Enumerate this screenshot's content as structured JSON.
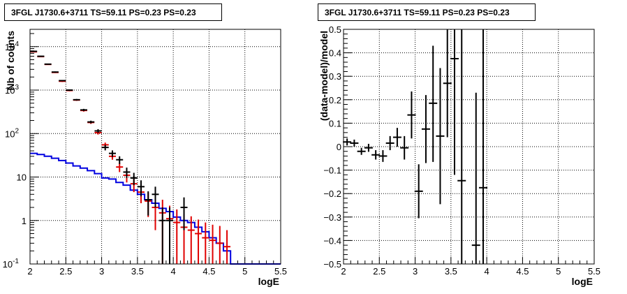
{
  "chart_data": [
    {
      "type": "histogram",
      "title": "3FGL J1730.6+3711 TS=59.11 PS=0.23 PS=0.23",
      "xlabel": "logE",
      "ylabel": "Nb of counts",
      "xlim": [
        2,
        5.5
      ],
      "ylim": [
        0.1,
        25000
      ],
      "log_y": true,
      "grid": true,
      "xticks": [
        "2",
        "2.5",
        "3",
        "3.5",
        "4",
        "4.5",
        "5",
        "5.5"
      ],
      "yticks": [
        {
          "v": 0.1,
          "label": "10",
          "exp": "-1"
        },
        {
          "v": 1,
          "label": "1",
          "exp": ""
        },
        {
          "v": 10,
          "label": "10",
          "exp": ""
        },
        {
          "v": 100,
          "label": "10",
          "exp": "2"
        },
        {
          "v": 1000,
          "label": "10",
          "exp": "3"
        },
        {
          "v": 10000,
          "label": "10",
          "exp": "4"
        }
      ],
      "bin_edges": [
        2.0,
        2.1,
        2.2,
        2.3,
        2.4,
        2.5,
        2.6,
        2.7,
        2.8,
        2.9,
        3.0,
        3.1,
        3.2,
        3.3,
        3.4,
        3.5,
        3.6,
        3.7,
        3.8,
        3.9,
        4.0,
        4.1,
        4.2,
        4.3,
        4.4,
        4.5,
        4.6,
        4.7,
        4.8,
        4.9,
        5.0,
        5.1,
        5.2,
        5.3,
        5.4,
        5.5
      ],
      "series": [
        {
          "kind": "data",
          "color": "#000000",
          "points": [
            {
              "x": 2.05,
              "y": 7800,
              "lo": 7600,
              "hi": 8000
            },
            {
              "x": 2.15,
              "y": 6000,
              "lo": 5850,
              "hi": 6150
            },
            {
              "x": 2.25,
              "y": 3950,
              "lo": 3850,
              "hi": 4050
            },
            {
              "x": 2.35,
              "y": 2600,
              "lo": 2520,
              "hi": 2680
            },
            {
              "x": 2.45,
              "y": 1650,
              "lo": 1590,
              "hi": 1710
            },
            {
              "x": 2.55,
              "y": 1000,
              "lo": 960,
              "hi": 1040
            },
            {
              "x": 2.65,
              "y": 600,
              "lo": 575,
              "hi": 625
            },
            {
              "x": 2.75,
              "y": 350,
              "lo": 330,
              "hi": 370
            },
            {
              "x": 2.85,
              "y": 185,
              "lo": 172,
              "hi": 198
            },
            {
              "x": 2.95,
              "y": 115,
              "lo": 104,
              "hi": 126
            },
            {
              "x": 3.05,
              "y": 48,
              "lo": 41,
              "hi": 55
            },
            {
              "x": 3.15,
              "y": 35,
              "lo": 29,
              "hi": 41
            },
            {
              "x": 3.25,
              "y": 25,
              "lo": 20,
              "hi": 30
            },
            {
              "x": 3.35,
              "y": 13,
              "lo": 9.5,
              "hi": 16.5
            },
            {
              "x": 3.45,
              "y": 9.5,
              "lo": 6.5,
              "hi": 12.5
            },
            {
              "x": 3.55,
              "y": 6,
              "lo": 3.6,
              "hi": 8.4
            },
            {
              "x": 3.65,
              "y": 3,
              "lo": 1.3,
              "hi": 4.7
            },
            {
              "x": 3.75,
              "y": 4,
              "lo": 2,
              "hi": 6
            },
            {
              "x": 3.85,
              "y": 1,
              "lo": 0.1,
              "hi": 2
            },
            {
              "x": 3.95,
              "y": 1,
              "lo": 0.1,
              "hi": 2
            },
            {
              "x": 4.15,
              "y": 2,
              "lo": 0.6,
              "hi": 3.4
            }
          ]
        },
        {
          "kind": "data",
          "color": "#e00000",
          "points": [
            {
              "x": 2.05,
              "y": 7600,
              "lo": 7400,
              "hi": 7800
            },
            {
              "x": 2.15,
              "y": 5900,
              "lo": 5750,
              "hi": 6050
            },
            {
              "x": 2.25,
              "y": 3900,
              "lo": 3800,
              "hi": 4000
            },
            {
              "x": 2.35,
              "y": 2550,
              "lo": 2470,
              "hi": 2630
            },
            {
              "x": 2.45,
              "y": 1600,
              "lo": 1540,
              "hi": 1660
            },
            {
              "x": 2.55,
              "y": 980,
              "lo": 940,
              "hi": 1020
            },
            {
              "x": 2.65,
              "y": 590,
              "lo": 565,
              "hi": 615
            },
            {
              "x": 2.75,
              "y": 340,
              "lo": 320,
              "hi": 360
            },
            {
              "x": 2.85,
              "y": 180,
              "lo": 167,
              "hi": 193
            },
            {
              "x": 2.95,
              "y": 105,
              "lo": 95,
              "hi": 115
            },
            {
              "x": 3.05,
              "y": 55,
              "lo": 48,
              "hi": 62
            },
            {
              "x": 3.15,
              "y": 30,
              "lo": 25,
              "hi": 35
            },
            {
              "x": 3.25,
              "y": 17,
              "lo": 13,
              "hi": 21
            },
            {
              "x": 3.35,
              "y": 11,
              "lo": 7.5,
              "hi": 14.5
            },
            {
              "x": 3.45,
              "y": 7,
              "lo": 4.5,
              "hi": 9.5
            },
            {
              "x": 3.55,
              "y": 4.5,
              "lo": 2.5,
              "hi": 6.5
            },
            {
              "x": 3.65,
              "y": 2.8,
              "lo": 1.2,
              "hi": 4.4
            },
            {
              "x": 3.75,
              "y": 2,
              "lo": 0.6,
              "hi": 3.4
            },
            {
              "x": 3.85,
              "y": 1.5,
              "lo": 0.1,
              "hi": 3
            },
            {
              "x": 3.95,
              "y": 1.1,
              "lo": 0.1,
              "hi": 2.2
            },
            {
              "x": 4.05,
              "y": 0.9,
              "lo": 0.1,
              "hi": 1.8
            },
            {
              "x": 4.15,
              "y": 0.7,
              "lo": 0.1,
              "hi": 1.4
            },
            {
              "x": 4.25,
              "y": 0.6,
              "lo": 0.1,
              "hi": 1.25
            },
            {
              "x": 4.35,
              "y": 0.5,
              "lo": 0.1,
              "hi": 1.05
            },
            {
              "x": 4.45,
              "y": 0.4,
              "lo": 0.1,
              "hi": 0.9
            },
            {
              "x": 4.55,
              "y": 0.35,
              "lo": 0.1,
              "hi": 0.8
            },
            {
              "x": 4.65,
              "y": 0.3,
              "lo": 0.1,
              "hi": 0.75
            },
            {
              "x": 4.75,
              "y": 0.25,
              "lo": 0.1,
              "hi": 0.6
            }
          ]
        },
        {
          "kind": "step",
          "color": "#0000e0",
          "values": [
            35,
            33,
            30,
            27,
            24,
            21,
            18,
            16,
            14,
            12,
            9.5,
            9,
            7.5,
            6.5,
            5,
            4,
            3,
            2.5,
            1.9,
            1.6,
            1.2,
            1.0,
            0.9,
            0.7,
            0.55,
            0.4,
            0.3,
            0.2,
            0.1,
            0.1,
            0.1,
            0.1,
            0.1,
            0.1,
            0.1
          ]
        }
      ]
    },
    {
      "type": "scatter",
      "title": "3FGL J1730.6+3711 TS=59.11 PS=0.23 PS=0.23",
      "xlabel": "logE",
      "ylabel": "(data-model)/model",
      "xlim": [
        2,
        5.5
      ],
      "ylim": [
        -0.5,
        0.5
      ],
      "grid": true,
      "xticks": [
        "2",
        "2.5",
        "3",
        "3.5",
        "4",
        "4.5",
        "5",
        "5.5"
      ],
      "yticks": [
        "-0.5",
        "-0.4",
        "-0.3",
        "-0.2",
        "-0.1",
        "0",
        "0.1",
        "0.2",
        "0.3",
        "0.4",
        "0.5"
      ],
      "color": "#000000",
      "points": [
        {
          "x": 2.05,
          "y": 0.02,
          "lo": 0.005,
          "hi": 0.035
        },
        {
          "x": 2.15,
          "y": 0.015,
          "lo": 0.0,
          "hi": 0.03
        },
        {
          "x": 2.25,
          "y": -0.02,
          "lo": -0.035,
          "hi": -0.005
        },
        {
          "x": 2.35,
          "y": -0.005,
          "lo": -0.022,
          "hi": 0.012
        },
        {
          "x": 2.45,
          "y": -0.035,
          "lo": -0.055,
          "hi": -0.015
        },
        {
          "x": 2.55,
          "y": -0.04,
          "lo": -0.065,
          "hi": -0.015
        },
        {
          "x": 2.65,
          "y": 0.015,
          "lo": -0.015,
          "hi": 0.045
        },
        {
          "x": 2.75,
          "y": 0.04,
          "lo": 0.0,
          "hi": 0.08
        },
        {
          "x": 2.85,
          "y": -0.005,
          "lo": -0.055,
          "hi": 0.045
        },
        {
          "x": 2.95,
          "y": 0.135,
          "lo": 0.035,
          "hi": 0.235
        },
        {
          "x": 3.05,
          "y": -0.19,
          "lo": -0.305,
          "hi": -0.075
        },
        {
          "x": 3.15,
          "y": 0.075,
          "lo": -0.07,
          "hi": 0.22
        },
        {
          "x": 3.25,
          "y": 0.185,
          "lo": -0.065,
          "hi": 0.43
        },
        {
          "x": 3.35,
          "y": 0.045,
          "lo": -0.245,
          "hi": 0.335
        },
        {
          "x": 3.45,
          "y": 0.27,
          "lo": 0.04,
          "hi": 0.5
        },
        {
          "x": 3.55,
          "y": 0.375,
          "lo": -0.12,
          "hi": 0.5
        },
        {
          "x": 3.65,
          "y": -0.145,
          "lo": -0.5,
          "hi": 0.5
        },
        {
          "x": 3.85,
          "y": -0.42,
          "lo": -0.5,
          "hi": 0.23
        },
        {
          "x": 3.95,
          "y": -0.175,
          "lo": -0.5,
          "hi": 0.5
        }
      ]
    }
  ]
}
